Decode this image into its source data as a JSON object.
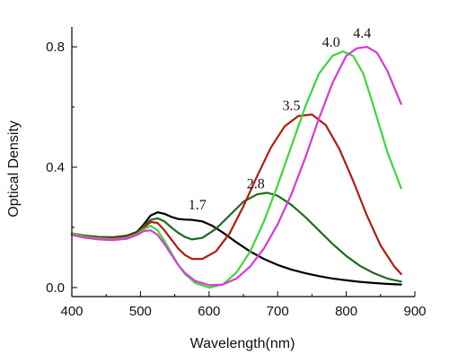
{
  "chart_data": {
    "type": "line",
    "xlabel": "Wavelength(nm)",
    "ylabel": "Optical Density",
    "xlim": [
      400,
      900
    ],
    "ylim": [
      -0.03,
      0.86
    ],
    "xticks": [
      400,
      500,
      600,
      700,
      800,
      900
    ],
    "xtick_labels": [
      "400",
      "500",
      "600",
      "700",
      "800",
      "900"
    ],
    "yticks": [
      0.0,
      0.4,
      0.8
    ],
    "ytick_labels": [
      "0.0",
      "0.4",
      "0.8"
    ],
    "grid": false,
    "series": [
      {
        "label": "1.7",
        "color": "#000000",
        "label_anchor": [
          583,
          0.26
        ],
        "x": [
          400,
          420,
          440,
          460,
          480,
          495,
          505,
          515,
          525,
          535,
          545,
          555,
          565,
          575,
          590,
          605,
          620,
          640,
          660,
          680,
          700,
          720,
          740,
          760,
          780,
          800,
          820,
          840,
          860,
          880
        ],
        "y": [
          0.18,
          0.172,
          0.168,
          0.167,
          0.172,
          0.185,
          0.21,
          0.24,
          0.25,
          0.245,
          0.235,
          0.228,
          0.226,
          0.225,
          0.22,
          0.205,
          0.183,
          0.15,
          0.12,
          0.095,
          0.075,
          0.06,
          0.048,
          0.038,
          0.03,
          0.024,
          0.019,
          0.015,
          0.012,
          0.01
        ]
      },
      {
        "label": "2.8",
        "color": "#1e6b1e",
        "label_anchor": [
          668,
          0.33
        ],
        "x": [
          400,
          420,
          440,
          460,
          480,
          495,
          505,
          515,
          525,
          535,
          545,
          555,
          565,
          575,
          590,
          610,
          630,
          650,
          670,
          685,
          700,
          720,
          740,
          760,
          780,
          800,
          820,
          840,
          860,
          880
        ],
        "y": [
          0.18,
          0.172,
          0.168,
          0.166,
          0.17,
          0.182,
          0.205,
          0.225,
          0.23,
          0.22,
          0.2,
          0.182,
          0.168,
          0.16,
          0.165,
          0.195,
          0.24,
          0.285,
          0.31,
          0.315,
          0.305,
          0.275,
          0.235,
          0.19,
          0.145,
          0.105,
          0.072,
          0.048,
          0.03,
          0.02
        ]
      },
      {
        "label": "3.5",
        "color": "#b31b12",
        "label_anchor": [
          720,
          0.59
        ],
        "x": [
          400,
          420,
          440,
          460,
          480,
          495,
          505,
          515,
          525,
          535,
          545,
          555,
          565,
          575,
          590,
          610,
          630,
          650,
          670,
          690,
          710,
          730,
          750,
          770,
          790,
          810,
          830,
          850,
          870,
          880
        ],
        "y": [
          0.18,
          0.17,
          0.165,
          0.164,
          0.168,
          0.18,
          0.2,
          0.218,
          0.215,
          0.19,
          0.16,
          0.13,
          0.108,
          0.095,
          0.095,
          0.12,
          0.18,
          0.27,
          0.37,
          0.465,
          0.535,
          0.57,
          0.575,
          0.54,
          0.46,
          0.355,
          0.24,
          0.14,
          0.07,
          0.045
        ]
      },
      {
        "label": "4.0",
        "color": "#39d93a",
        "label_anchor": [
          778,
          0.8
        ],
        "x": [
          400,
          420,
          440,
          460,
          480,
          495,
          505,
          515,
          525,
          535,
          545,
          555,
          565,
          580,
          600,
          620,
          640,
          660,
          680,
          700,
          720,
          740,
          760,
          780,
          795,
          810,
          825,
          840,
          860,
          880
        ],
        "y": [
          0.18,
          0.168,
          0.163,
          0.16,
          0.165,
          0.178,
          0.195,
          0.205,
          0.19,
          0.155,
          0.115,
          0.075,
          0.045,
          0.015,
          0.0,
          0.01,
          0.05,
          0.12,
          0.22,
          0.34,
          0.47,
          0.6,
          0.71,
          0.77,
          0.785,
          0.77,
          0.71,
          0.6,
          0.45,
          0.33
        ]
      },
      {
        "label": "4.4",
        "color": "#d73ad7",
        "label_anchor": [
          823,
          0.83
        ],
        "x": [
          400,
          420,
          440,
          460,
          480,
          495,
          505,
          515,
          525,
          535,
          545,
          555,
          565,
          580,
          600,
          620,
          640,
          660,
          680,
          700,
          720,
          740,
          760,
          780,
          800,
          815,
          830,
          845,
          860,
          880
        ],
        "y": [
          0.175,
          0.165,
          0.16,
          0.158,
          0.162,
          0.175,
          0.188,
          0.19,
          0.175,
          0.145,
          0.11,
          0.075,
          0.048,
          0.022,
          0.008,
          0.01,
          0.03,
          0.07,
          0.13,
          0.21,
          0.31,
          0.43,
          0.56,
          0.68,
          0.77,
          0.795,
          0.8,
          0.78,
          0.72,
          0.61
        ]
      }
    ]
  }
}
